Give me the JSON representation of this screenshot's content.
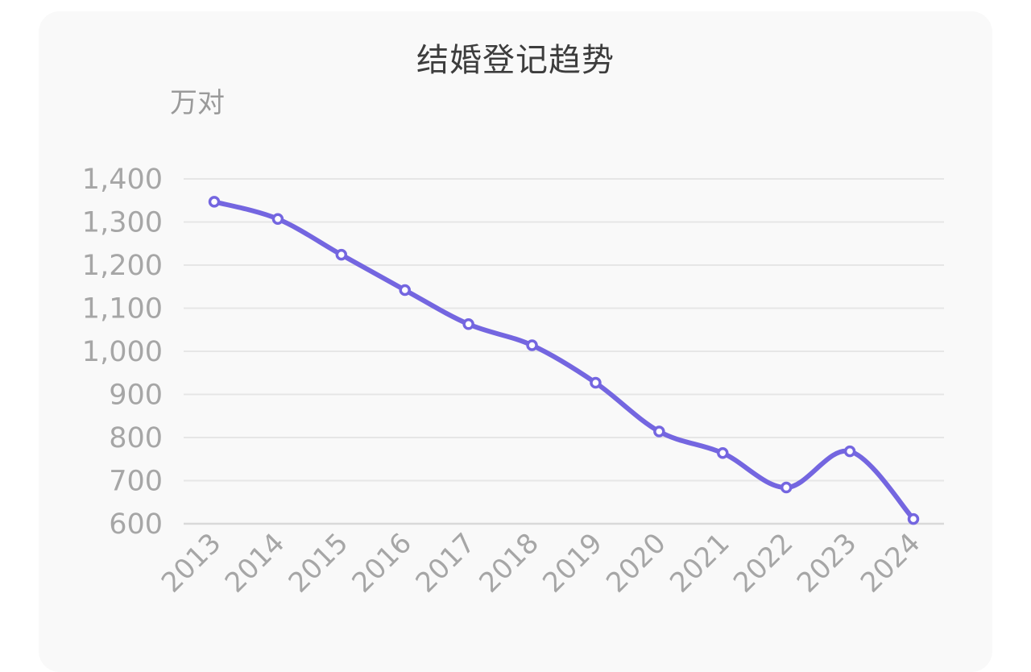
{
  "chart_data": {
    "type": "line",
    "title": "结婚登记趋势",
    "ylabel": "万对",
    "xlabel": "",
    "ylim": [
      600,
      1400
    ],
    "yticks": [
      600,
      700,
      800,
      900,
      1000,
      1100,
      1200,
      1300,
      1400
    ],
    "ytick_labels": [
      "600",
      "700",
      "800",
      "900",
      "1,000",
      "1,100",
      "1,200",
      "1,300",
      "1,400"
    ],
    "categories": [
      "2013",
      "2014",
      "2015",
      "2016",
      "2017",
      "2018",
      "2019",
      "2020",
      "2021",
      "2022",
      "2023",
      "2024"
    ],
    "series": [
      {
        "values": [
          1347,
          1307,
          1224,
          1142,
          1063,
          1014,
          927,
          814,
          764,
          684,
          768,
          611
        ]
      }
    ],
    "grid": true,
    "smooth": true
  },
  "colors": {
    "line": "#7466e0",
    "grid": "#e6e6e6",
    "card_background": "#f9f9f9",
    "axis_text": "#a6a6a6",
    "title_text": "#3d3d3d"
  }
}
